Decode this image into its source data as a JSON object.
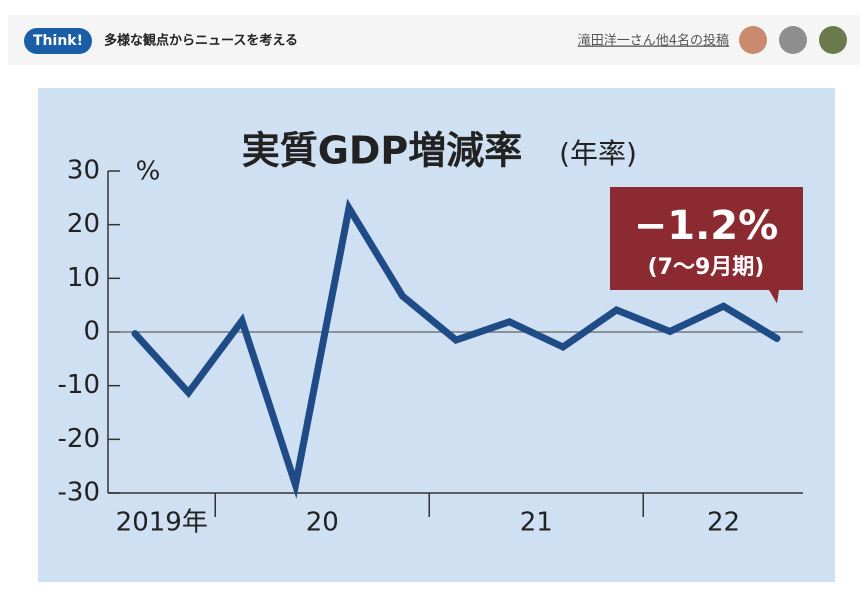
{
  "header": {
    "badge": "Think!",
    "tagline": "多様な観点からニュースを考える",
    "posts": "滝田洋一さん他4名の投稿"
  },
  "chart_data": {
    "type": "line",
    "title": "実質GDP増減率",
    "subtitle": "(年率)",
    "y_label": "%",
    "categories": [
      "2019年",
      null,
      "20",
      null,
      null,
      null,
      "21",
      null,
      null,
      null,
      "22",
      null,
      null
    ],
    "series": [
      {
        "color": "#1f4b87",
        "values": [
          -0.3,
          -11.3,
          2.1,
          -28.5,
          23.1,
          6.7,
          -1.5,
          1.9,
          -2.8,
          4.1,
          0.1,
          4.8,
          -1.2
        ],
        "value_labels": [
          null,
          null,
          null,
          null,
          null,
          null,
          null,
          null,
          null,
          null,
          null,
          null,
          "−1.2%"
        ]
      }
    ],
    "annotation": "(7〜9月期)",
    "ylim": [
      -30,
      30
    ],
    "yticks": [
      30,
      20,
      10,
      0,
      -10,
      -20,
      -30
    ],
    "zero_line": true
  }
}
